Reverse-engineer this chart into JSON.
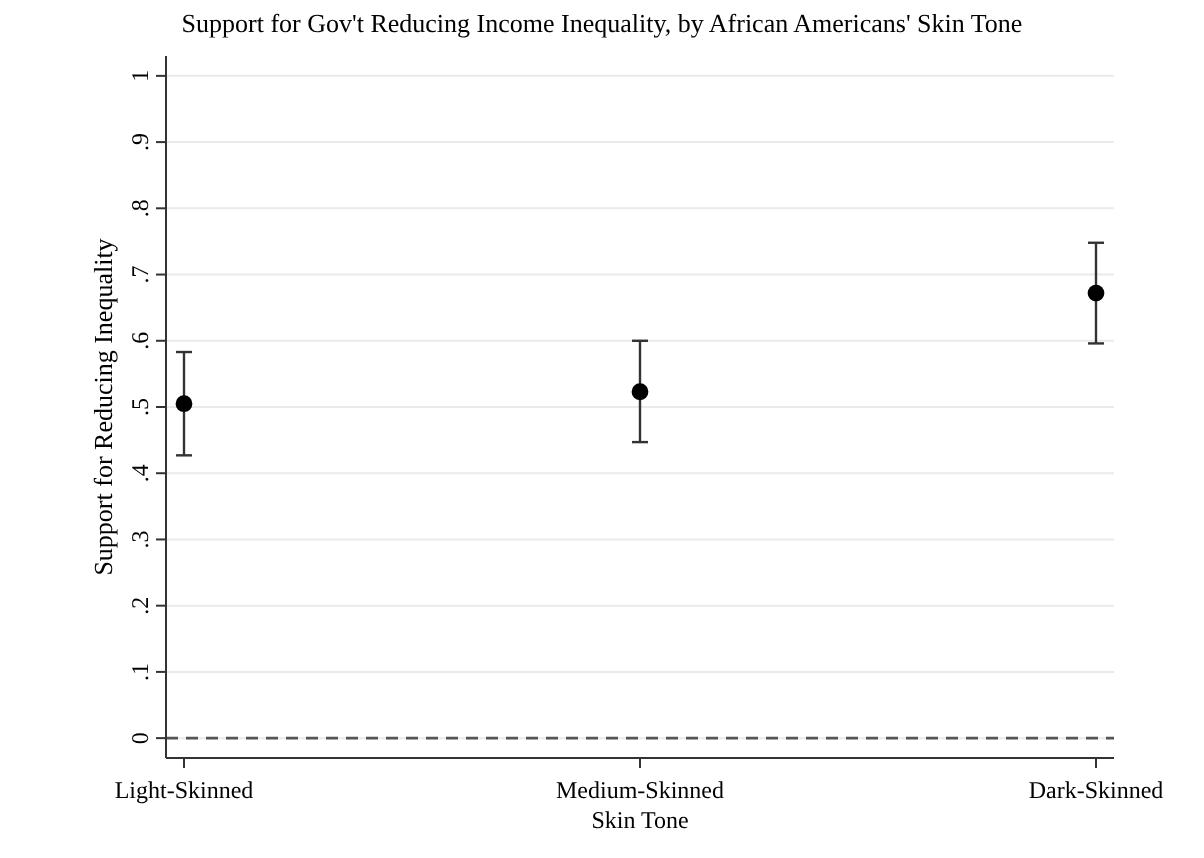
{
  "chart_data": {
    "type": "scatter",
    "title": "Support for Gov't Reducing Income Inequality, by African Americans' Skin Tone",
    "xlabel": "Skin Tone",
    "ylabel": "Support for Reducing Inequality",
    "categories": [
      "Light-Skinned",
      "Medium-Skinned",
      "Dark-Skinned"
    ],
    "series": [
      {
        "color": "#000000",
        "values": [
          0.505,
          0.523,
          0.672
        ],
        "errors": [
          [
            0.427,
            0.583
          ],
          [
            0.447,
            0.6
          ],
          [
            0.596,
            0.748
          ]
        ]
      }
    ],
    "ylim": [
      -0.03,
      1.03
    ],
    "yticks": [
      0,
      {
        "value": 0.1,
        "label": ".1"
      },
      {
        "value": 0.2,
        "label": ".2"
      },
      {
        "value": 0.3,
        "label": ".3"
      },
      {
        "value": 0.4,
        "label": ".4"
      },
      {
        "value": 0.5,
        "label": ".5"
      },
      {
        "value": 0.6,
        "label": ".6"
      },
      {
        "value": 0.7,
        "label": ".7"
      },
      {
        "value": 0.8,
        "label": ".8"
      },
      {
        "value": 0.9,
        "label": ".9"
      },
      1
    ],
    "ref_lines": [
      {
        "axis": "y",
        "value": 0,
        "color": "#555555",
        "line_style": "dashed"
      }
    ],
    "grid": "y",
    "marker": "circle"
  }
}
